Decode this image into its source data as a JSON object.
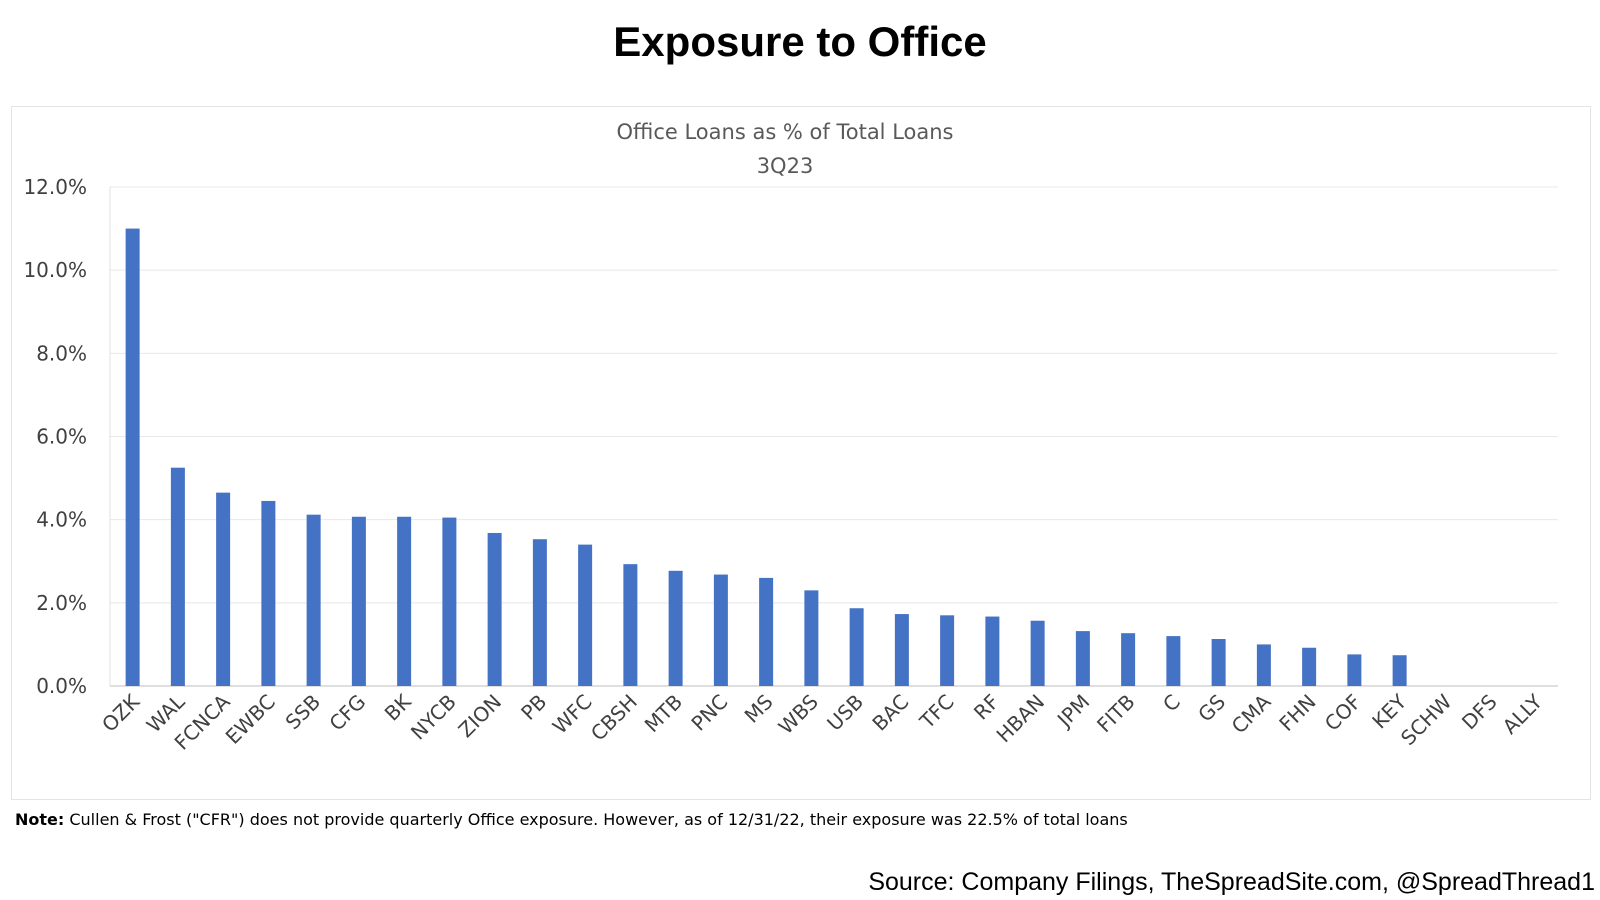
{
  "page_title": "Exposure to Office",
  "note": {
    "label": "Note:",
    "text": " Cullen & Frost (\"CFR\") does not provide quarterly Office exposure. However, as of 12/31/22, their exposure was 22.5% of total loans"
  },
  "source": "Source: Company Filings, TheSpreadSite.com, @SpreadThread1",
  "chart_data": {
    "type": "bar",
    "title": "Office Loans as % of Total Loans",
    "subtitle": "3Q23",
    "xlabel": "",
    "ylabel": "",
    "ylim": [
      0,
      12
    ],
    "yticks": [
      0,
      2,
      4,
      6,
      8,
      10,
      12
    ],
    "ytick_labels": [
      "0.0%",
      "2.0%",
      "4.0%",
      "6.0%",
      "8.0%",
      "10.0%",
      "12.0%"
    ],
    "grid": true,
    "legend": "none",
    "bar_color": "#4472C4",
    "categories": [
      "OZK",
      "WAL",
      "FCNCA",
      "EWBC",
      "SSB",
      "CFG",
      "BK",
      "NYCB",
      "ZION",
      "PB",
      "WFC",
      "CBSH",
      "MTB",
      "PNC",
      "MS",
      "WBS",
      "USB",
      "BAC",
      "TFC",
      "RF",
      "HBAN",
      "JPM",
      "FITB",
      "C",
      "GS",
      "CMA",
      "FHN",
      "COF",
      "KEY",
      "SCHW",
      "DFS",
      "ALLY"
    ],
    "values": [
      11.0,
      5.25,
      4.65,
      4.45,
      4.12,
      4.07,
      4.07,
      4.05,
      3.68,
      3.53,
      3.4,
      2.93,
      2.77,
      2.68,
      2.6,
      2.3,
      1.87,
      1.73,
      1.7,
      1.67,
      1.57,
      1.32,
      1.27,
      1.2,
      1.13,
      1.0,
      0.92,
      0.76,
      0.74,
      0,
      0,
      0
    ]
  }
}
